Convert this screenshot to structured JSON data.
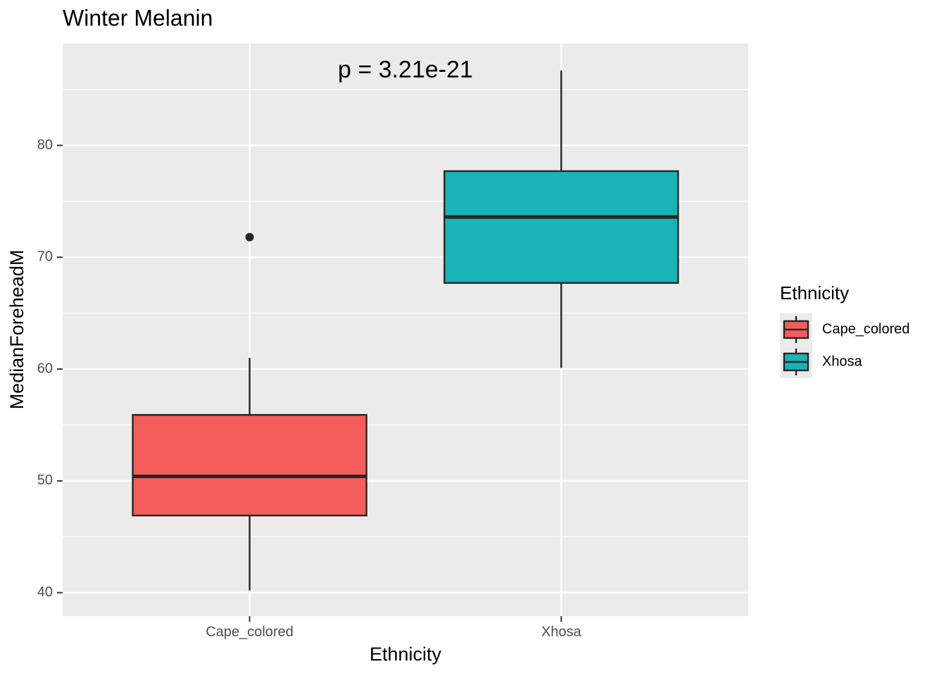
{
  "chart_data": {
    "type": "boxplot",
    "title": "Winter Melanin",
    "annotation": "p = 3.21e-21",
    "xlabel": "Ethnicity",
    "ylabel": "MedianForeheadM",
    "legend_title": "Ethnicity",
    "categories": [
      "Cape_colored",
      "Xhosa"
    ],
    "boxes": [
      {
        "color": "#F35E5A",
        "whislo": 40.2,
        "q1": 46.9,
        "med": 50.4,
        "q3": 55.9,
        "whishi": 61.0,
        "fliers": [
          71.8
        ]
      },
      {
        "color": "#19B3B8",
        "whislo": 60.1,
        "q1": 67.7,
        "med": 73.6,
        "q3": 77.7,
        "whishi": 86.7,
        "fliers": []
      }
    ],
    "ylim": [
      37.9,
      89.1
    ],
    "yticks": [
      40,
      50,
      60,
      70,
      80
    ],
    "yminor": [
      45,
      55,
      65,
      75,
      85
    ],
    "grid": true,
    "legend": "right"
  }
}
